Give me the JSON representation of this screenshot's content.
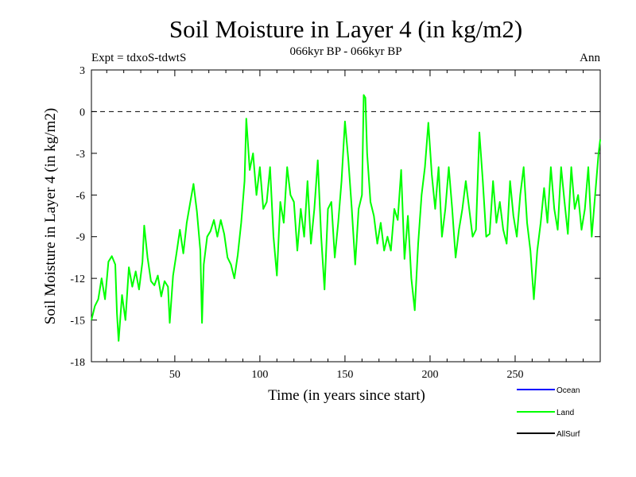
{
  "chart_data": {
    "type": "line",
    "title": "Soil Moisture in Layer 4 (in kg/m2)",
    "subtitle": "066kyr BP - 066kyr BP",
    "experiment_label": "Expt = tdxoS-tdwtS",
    "season_label": "Ann",
    "xlabel": "Time (in years since start)",
    "ylabel": "Soil Moisture in Layer 4 (in kg/m2)",
    "xlim": [
      1,
      300
    ],
    "ylim": [
      -18,
      3
    ],
    "x_ticks": [
      50,
      100,
      150,
      200,
      250
    ],
    "y_ticks": [
      3,
      0,
      -3,
      -6,
      -9,
      -12,
      -15,
      -18
    ],
    "reference_line": {
      "y": 0,
      "style": "dashed"
    },
    "legend_position": "bottom-right",
    "series": [
      {
        "name": "Ocean",
        "color": "#0000ff",
        "values": []
      },
      {
        "name": "Land",
        "color": "#00ff00",
        "points": [
          [
            1,
            -15
          ],
          [
            3,
            -14
          ],
          [
            5,
            -13.5
          ],
          [
            7,
            -12
          ],
          [
            9,
            -13.5
          ],
          [
            11,
            -10.8
          ],
          [
            13,
            -10.4
          ],
          [
            15,
            -11
          ],
          [
            16,
            -14.5
          ],
          [
            17,
            -16.5
          ],
          [
            19,
            -13.2
          ],
          [
            21,
            -15
          ],
          [
            23,
            -11.2
          ],
          [
            25,
            -12.6
          ],
          [
            27,
            -11.5
          ],
          [
            29,
            -12.8
          ],
          [
            31,
            -10.8
          ],
          [
            32,
            -8.2
          ],
          [
            34,
            -10.5
          ],
          [
            36,
            -12.2
          ],
          [
            38,
            -12.5
          ],
          [
            40,
            -11.8
          ],
          [
            42,
            -13.3
          ],
          [
            44,
            -12.2
          ],
          [
            46,
            -12.6
          ],
          [
            47,
            -15.2
          ],
          [
            49,
            -11.8
          ],
          [
            51,
            -10.2
          ],
          [
            53,
            -8.5
          ],
          [
            55,
            -10.2
          ],
          [
            57,
            -8
          ],
          [
            59,
            -6.6
          ],
          [
            61,
            -5.2
          ],
          [
            63,
            -7.2
          ],
          [
            65,
            -10
          ],
          [
            66,
            -15.2
          ],
          [
            67,
            -11
          ],
          [
            69,
            -9
          ],
          [
            71,
            -8.6
          ],
          [
            73,
            -7.8
          ],
          [
            75,
            -9
          ],
          [
            77,
            -7.8
          ],
          [
            79,
            -8.8
          ],
          [
            81,
            -10.5
          ],
          [
            83,
            -11
          ],
          [
            85,
            -12
          ],
          [
            87,
            -10.3
          ],
          [
            89,
            -8
          ],
          [
            91,
            -5
          ],
          [
            92,
            -0.5
          ],
          [
            94,
            -4.2
          ],
          [
            96,
            -3
          ],
          [
            98,
            -6
          ],
          [
            100,
            -4
          ],
          [
            102,
            -7
          ],
          [
            104,
            -6.5
          ],
          [
            106,
            -4
          ],
          [
            108,
            -9
          ],
          [
            110,
            -11.8
          ],
          [
            112,
            -6.5
          ],
          [
            114,
            -8
          ],
          [
            116,
            -4
          ],
          [
            118,
            -6
          ],
          [
            120,
            -6.5
          ],
          [
            122,
            -10
          ],
          [
            124,
            -7
          ],
          [
            126,
            -9
          ],
          [
            128,
            -5
          ],
          [
            130,
            -9.5
          ],
          [
            132,
            -7
          ],
          [
            134,
            -3.5
          ],
          [
            136,
            -9
          ],
          [
            138,
            -12.8
          ],
          [
            140,
            -7
          ],
          [
            142,
            -6.5
          ],
          [
            144,
            -10.5
          ],
          [
            146,
            -8
          ],
          [
            148,
            -5
          ],
          [
            150,
            -0.7
          ],
          [
            152,
            -3.5
          ],
          [
            154,
            -7
          ],
          [
            156,
            -11
          ],
          [
            158,
            -7
          ],
          [
            160,
            -6
          ],
          [
            161,
            1.2
          ],
          [
            162,
            1
          ],
          [
            163,
            -3
          ],
          [
            165,
            -6.5
          ],
          [
            167,
            -7.5
          ],
          [
            169,
            -9.5
          ],
          [
            171,
            -8
          ],
          [
            173,
            -10
          ],
          [
            175,
            -9
          ],
          [
            177,
            -10
          ],
          [
            179,
            -7
          ],
          [
            181,
            -7.8
          ],
          [
            183,
            -4.2
          ],
          [
            185,
            -10.6
          ],
          [
            187,
            -7.5
          ],
          [
            189,
            -12
          ],
          [
            191,
            -14.3
          ],
          [
            193,
            -9.5
          ],
          [
            195,
            -6
          ],
          [
            197,
            -4
          ],
          [
            199,
            -0.8
          ],
          [
            201,
            -4.5
          ],
          [
            203,
            -7
          ],
          [
            205,
            -4
          ],
          [
            207,
            -9
          ],
          [
            209,
            -7
          ],
          [
            211,
            -4
          ],
          [
            213,
            -7
          ],
          [
            215,
            -10.5
          ],
          [
            217,
            -8.5
          ],
          [
            219,
            -7
          ],
          [
            221,
            -5
          ],
          [
            223,
            -7
          ],
          [
            225,
            -9
          ],
          [
            227,
            -8.5
          ],
          [
            229,
            -1.5
          ],
          [
            231,
            -5
          ],
          [
            233,
            -9
          ],
          [
            235,
            -8.8
          ],
          [
            237,
            -5
          ],
          [
            239,
            -8
          ],
          [
            241,
            -6.5
          ],
          [
            243,
            -8.5
          ],
          [
            245,
            -9.5
          ],
          [
            247,
            -5
          ],
          [
            249,
            -7.5
          ],
          [
            251,
            -9
          ],
          [
            253,
            -6
          ],
          [
            255,
            -4
          ],
          [
            257,
            -8
          ],
          [
            259,
            -10
          ],
          [
            261,
            -13.5
          ],
          [
            263,
            -10
          ],
          [
            265,
            -8
          ],
          [
            267,
            -5.5
          ],
          [
            269,
            -8
          ],
          [
            271,
            -4
          ],
          [
            273,
            -7
          ],
          [
            275,
            -8.5
          ],
          [
            277,
            -4
          ],
          [
            279,
            -6.5
          ],
          [
            281,
            -8.8
          ],
          [
            283,
            -4
          ],
          [
            285,
            -7
          ],
          [
            287,
            -6
          ],
          [
            289,
            -8.5
          ],
          [
            291,
            -7
          ],
          [
            293,
            -4
          ],
          [
            295,
            -9
          ],
          [
            297,
            -6
          ],
          [
            299,
            -3
          ],
          [
            300,
            -2
          ]
        ]
      },
      {
        "name": "AllSurf",
        "color": "#000000",
        "values": []
      }
    ]
  }
}
